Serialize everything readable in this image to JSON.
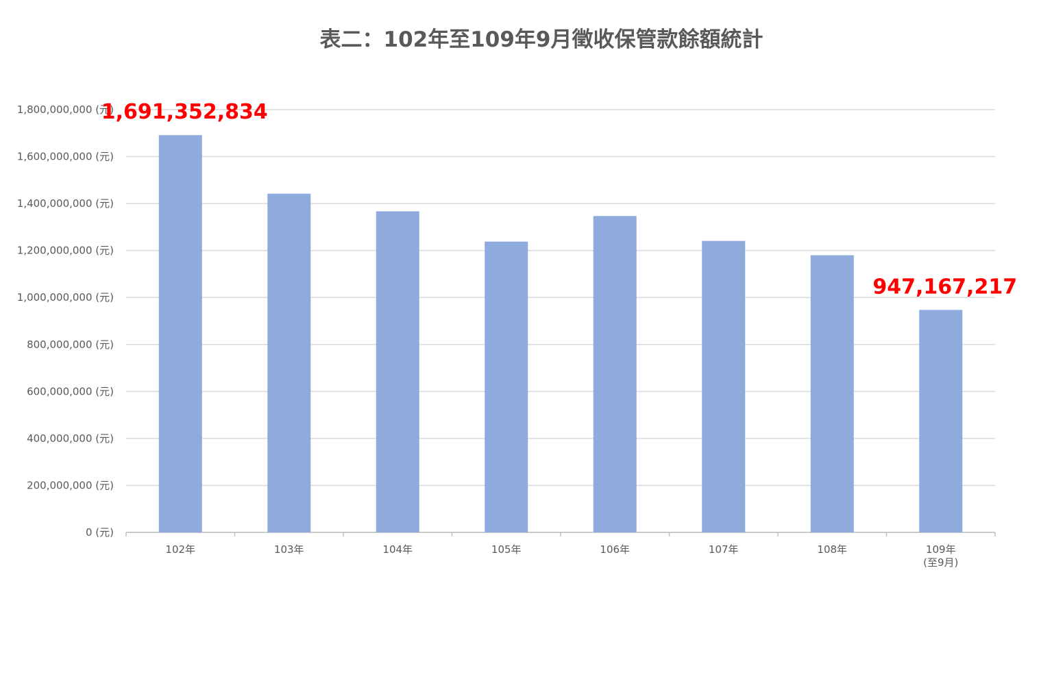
{
  "chart_data": {
    "type": "bar",
    "title": "表二：102年至109年9月徵收保管款餘額統計",
    "categories": [
      "102年",
      "103年",
      "104年",
      "105年",
      "106年",
      "107年",
      "108年",
      "109年\n(至9月)"
    ],
    "values": [
      1691352834,
      1442000000,
      1367000000,
      1238000000,
      1347000000,
      1241000000,
      1180000000,
      947167217
    ],
    "ylim": [
      0,
      1800000000
    ],
    "y_ticks": [
      0,
      200000000,
      400000000,
      600000000,
      800000000,
      1000000000,
      1200000000,
      1400000000,
      1600000000,
      1800000000
    ],
    "y_tick_labels": [
      "0 (元)",
      "200,000,000 (元)",
      "400,000,000 (元)",
      "600,000,000 (元)",
      "800,000,000 (元)",
      "1,000,000,000 (元)",
      "1,200,000,000 (元)",
      "1,400,000,000 (元)",
      "1,600,000,000 (元)",
      "1,800,000,000 (元)"
    ],
    "data_labels": [
      {
        "index": 0,
        "text": "1,691,352,834"
      },
      {
        "index": 7,
        "text": "947,167,217"
      }
    ],
    "bar_color": "#8faadc",
    "gridline_color": "#d9d9d9",
    "data_label_color": "#ff0000",
    "grid": true,
    "legend": "none"
  }
}
